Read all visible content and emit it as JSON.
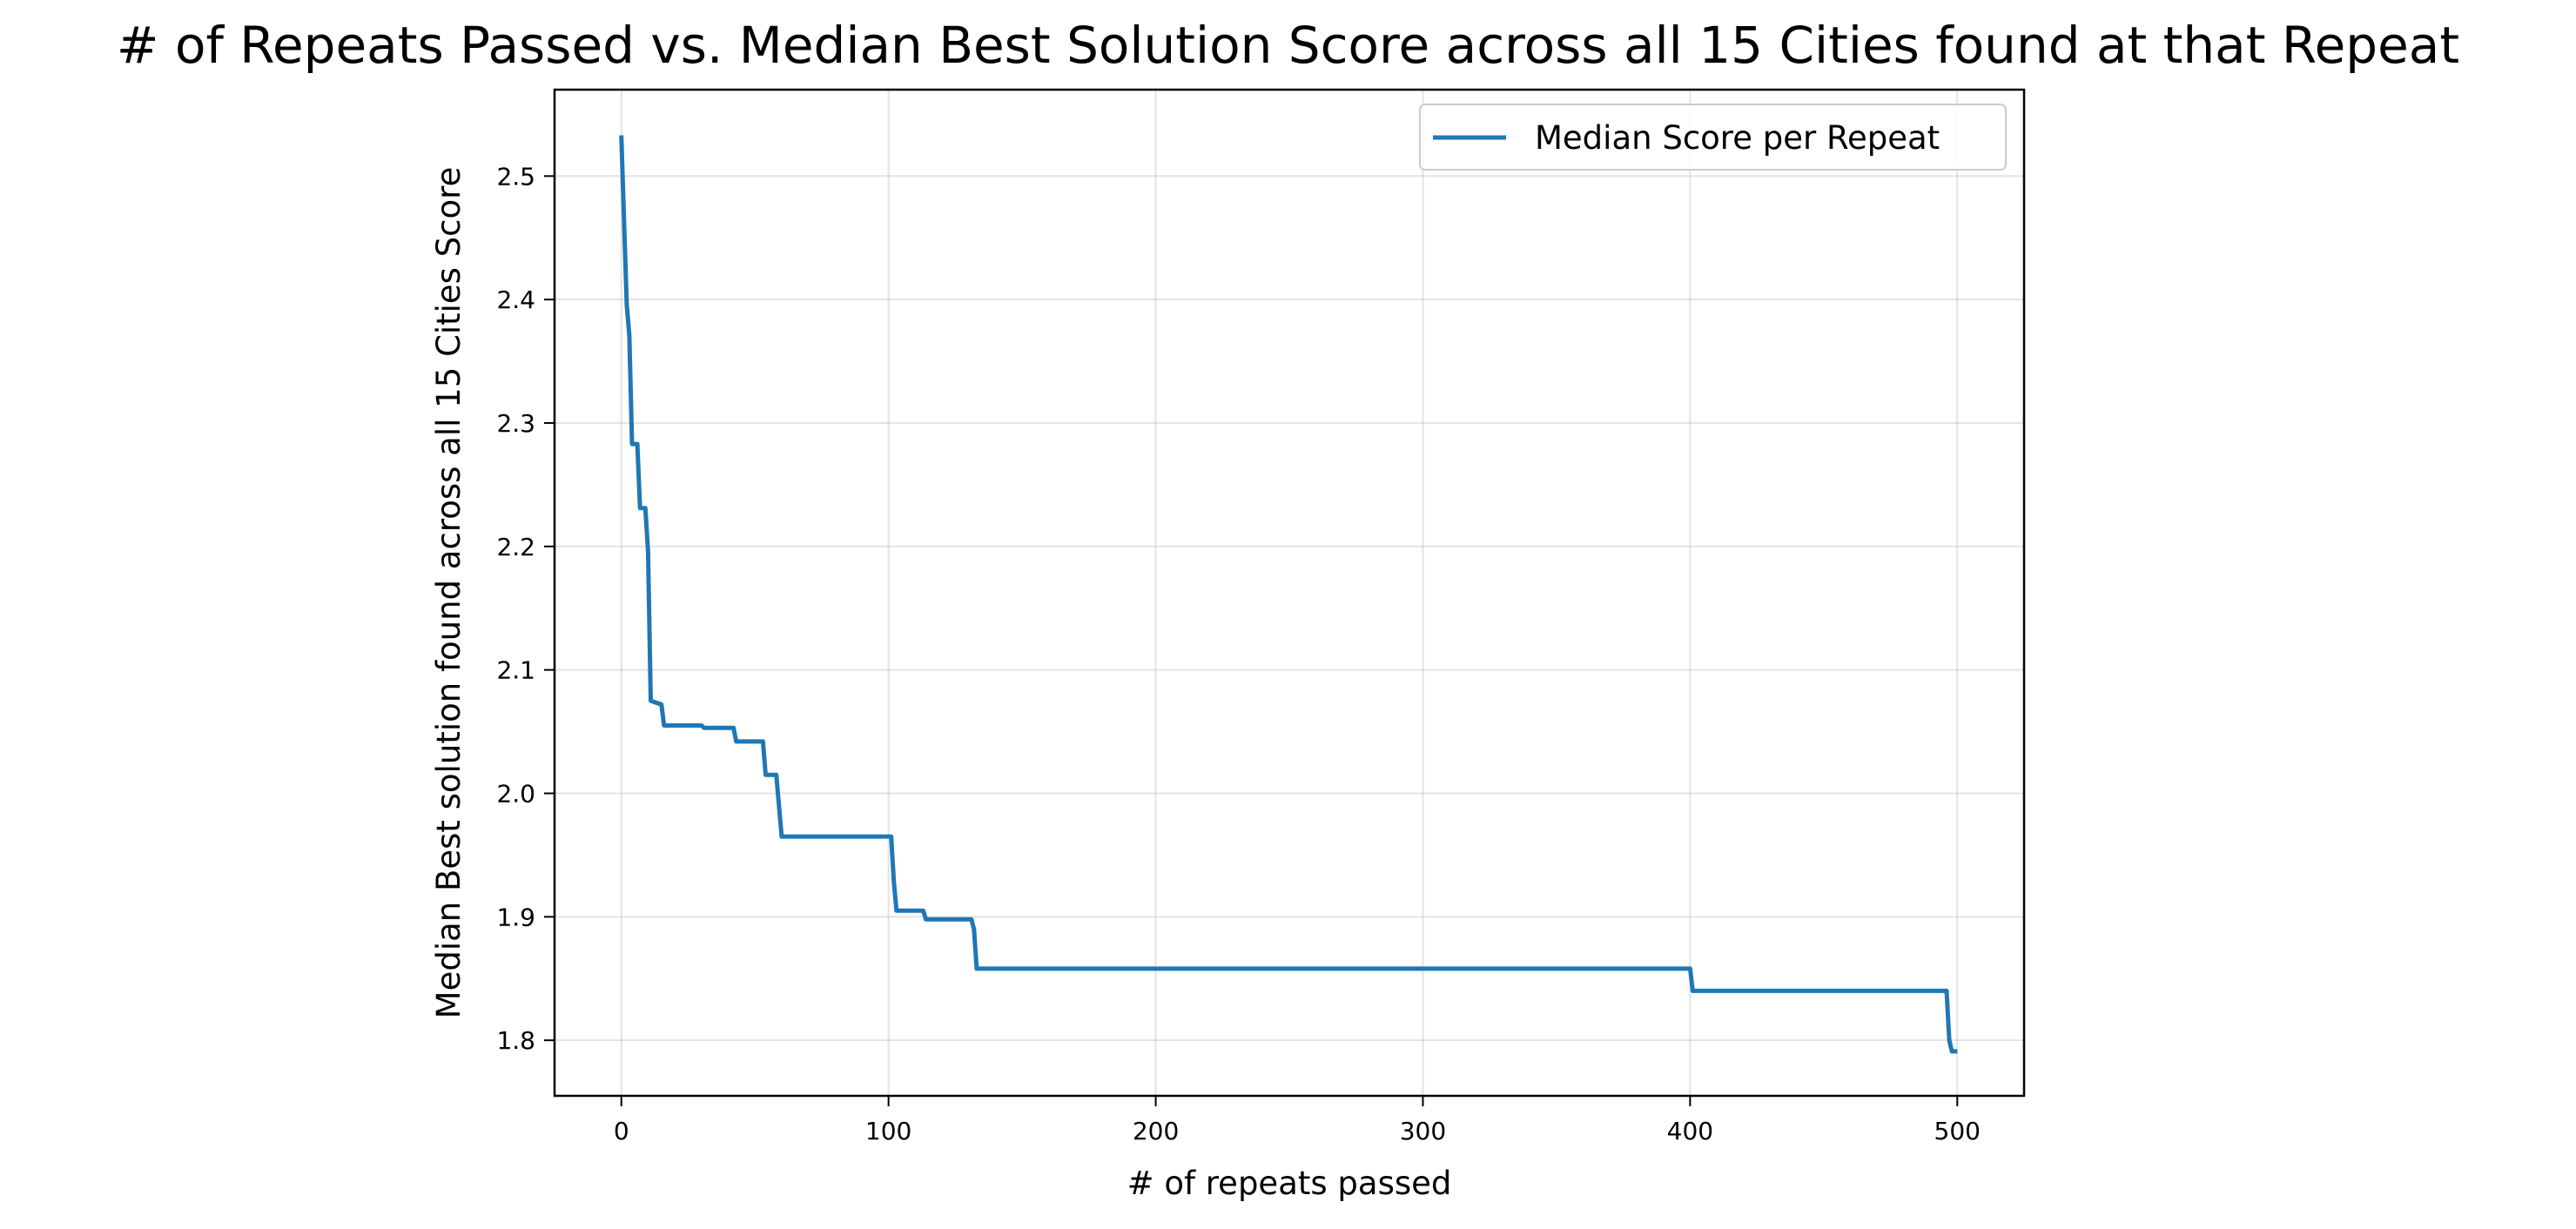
{
  "chart_data": {
    "type": "line",
    "title": "# of Repeats Passed vs. Median Best Solution Score across all 15 Cities found at that Repeat",
    "xlabel": "# of repeats passed",
    "ylabel": "Median Best solution found across all 15 Cities Score",
    "xlim": [
      -25,
      525
    ],
    "ylim": [
      1.755,
      2.57
    ],
    "xticks": [
      0,
      100,
      200,
      300,
      400,
      500
    ],
    "yticks": [
      1.8,
      1.9,
      2.0,
      2.1,
      2.2,
      2.3,
      2.4,
      2.5
    ],
    "ytick_labels": [
      "1.8",
      "1.9",
      "2.0",
      "2.1",
      "2.2",
      "2.3",
      "2.4",
      "2.5"
    ],
    "grid": true,
    "legend_position": "top-right",
    "series": [
      {
        "name": "Median Score per Repeat",
        "color": "#1f77b4",
        "x": [
          0,
          2,
          3,
          4,
          6,
          7,
          9,
          10,
          11,
          15,
          16,
          30,
          31,
          42,
          43,
          53,
          54,
          58,
          59,
          60,
          61,
          101,
          102,
          103,
          104,
          113,
          114,
          131,
          132,
          133,
          134,
          400,
          401,
          402,
          496,
          497,
          498,
          500
        ],
        "y": [
          2.533,
          2.396,
          2.371,
          2.283,
          2.283,
          2.231,
          2.231,
          2.196,
          2.075,
          2.072,
          2.055,
          2.055,
          2.053,
          2.053,
          2.042,
          2.042,
          2.015,
          2.015,
          1.99,
          1.965,
          1.965,
          1.965,
          1.928,
          1.905,
          1.905,
          1.905,
          1.898,
          1.898,
          1.89,
          1.858,
          1.858,
          1.858,
          1.84,
          1.84,
          1.84,
          1.8,
          1.791,
          1.791
        ]
      }
    ]
  }
}
